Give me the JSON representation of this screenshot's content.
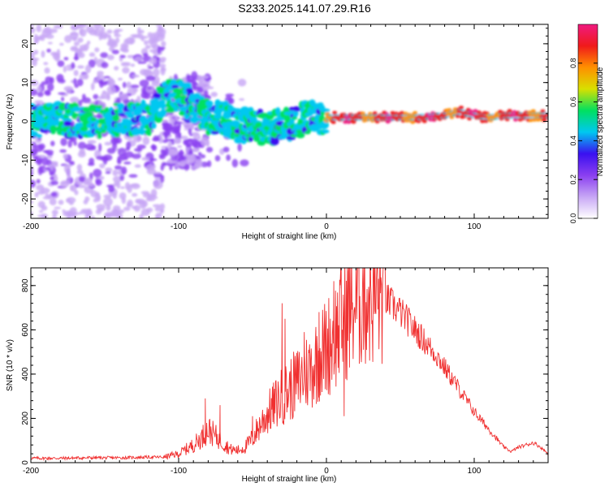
{
  "title": "S233.2025.141.07.29.R16",
  "colors": {
    "snr_line": "#f03030",
    "colormap": [
      "#ffffff",
      "#c7a6f5",
      "#8a3ff0",
      "#3a10f0",
      "#00c8f0",
      "#00e060",
      "#d8e000",
      "#ff9000",
      "#f01a1a",
      "#f01a80"
    ]
  },
  "chart_data": [
    {
      "type": "heatmap",
      "name": "spectrogram",
      "xlabel": "Height of straight line (km)",
      "ylabel": "Frequency (Hz)",
      "xlim": [
        -200,
        150
      ],
      "ylim": [
        -25,
        25
      ],
      "xticks": [
        {
          "value": -200,
          "label": "-200"
        },
        {
          "value": -100,
          "label": "-100"
        },
        {
          "value": 0,
          "label": "0"
        },
        {
          "value": 100,
          "label": "100"
        }
      ],
      "yticks": [
        {
          "value": -20,
          "label": "-20"
        },
        {
          "value": -10,
          "label": "-10"
        },
        {
          "value": 0,
          "label": "0"
        },
        {
          "value": 10,
          "label": "10"
        },
        {
          "value": 20,
          "label": "20"
        }
      ],
      "ridge": {
        "x": [
          -200,
          -180,
          -160,
          -140,
          -120,
          -110,
          -100,
          -90,
          -80,
          -70,
          -60,
          -50,
          -40,
          -30,
          -20,
          -10,
          0,
          10,
          20,
          40,
          60,
          80,
          90,
          100,
          110,
          120,
          130,
          150
        ],
        "y": [
          0,
          0.5,
          0,
          0.5,
          1,
          6,
          7,
          4,
          1,
          1,
          -1,
          -1,
          -2,
          -1,
          0,
          1,
          1,
          1,
          1,
          1,
          1,
          1.5,
          2.5,
          1.5,
          1,
          1.5,
          1.5,
          1.5
        ]
      },
      "colorbar": {
        "label": "Normalized spectral amplitude",
        "range": [
          0,
          1
        ],
        "ticks": [
          {
            "value": 0,
            "label": "0.0"
          },
          {
            "value": 0.2,
            "label": "0.2"
          },
          {
            "value": 0.4,
            "label": "0.4"
          },
          {
            "value": 0.6,
            "label": "0.6"
          },
          {
            "value": 0.8,
            "label": "0.8"
          }
        ]
      }
    },
    {
      "type": "line",
      "name": "snr",
      "xlabel": "Height of straight line (km)",
      "ylabel": "SNR (10 * v/v)",
      "xlim": [
        -200,
        150
      ],
      "ylim": [
        0,
        880
      ],
      "xticks": [
        {
          "value": -200,
          "label": "-200"
        },
        {
          "value": -100,
          "label": "-100"
        },
        {
          "value": 0,
          "label": "0"
        },
        {
          "value": 100,
          "label": "100"
        }
      ],
      "yticks": [
        {
          "value": 0,
          "label": "0"
        },
        {
          "value": 200,
          "label": "200"
        },
        {
          "value": 400,
          "label": "400"
        },
        {
          "value": 600,
          "label": "600"
        },
        {
          "value": 800,
          "label": "800"
        }
      ],
      "x": [
        -200,
        -180,
        -160,
        -140,
        -120,
        -110,
        -100,
        -95,
        -90,
        -85,
        -80,
        -75,
        -70,
        -65,
        -60,
        -55,
        -50,
        -45,
        -40,
        -35,
        -30,
        -25,
        -20,
        -15,
        -10,
        -5,
        0,
        5,
        10,
        15,
        20,
        25,
        30,
        35,
        40,
        45,
        50,
        55,
        60,
        65,
        70,
        75,
        80,
        85,
        90,
        95,
        100,
        105,
        110,
        115,
        120,
        125,
        130,
        135,
        140,
        145,
        150
      ],
      "y": [
        20,
        20,
        22,
        22,
        25,
        25,
        40,
        60,
        80,
        110,
        150,
        120,
        90,
        60,
        55,
        70,
        110,
        170,
        220,
        260,
        300,
        330,
        360,
        400,
        430,
        480,
        520,
        570,
        620,
        680,
        720,
        750,
        760,
        760,
        740,
        710,
        680,
        640,
        600,
        560,
        520,
        480,
        430,
        380,
        330,
        280,
        230,
        190,
        150,
        110,
        70,
        50,
        70,
        80,
        90,
        70,
        40
      ],
      "spikes": [
        {
          "x": -82,
          "y": 290
        },
        {
          "x": -72,
          "y": 260
        },
        {
          "x": -50,
          "y": 210
        },
        {
          "x": -30,
          "y": 720
        },
        {
          "x": -28,
          "y": 650
        },
        {
          "x": -15,
          "y": 590
        },
        {
          "x": -5,
          "y": 680
        },
        {
          "x": 5,
          "y": 820
        },
        {
          "x": 10,
          "y": 870
        },
        {
          "x": 12,
          "y": 210
        },
        {
          "x": 25,
          "y": 800
        },
        {
          "x": 30,
          "y": 800
        }
      ]
    }
  ]
}
